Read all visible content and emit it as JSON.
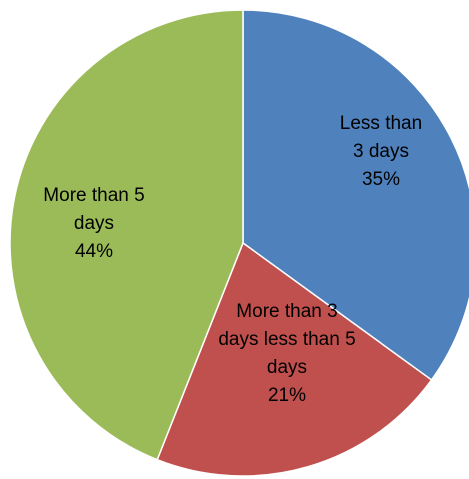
{
  "chart_data": {
    "type": "pie",
    "title": "",
    "slices": [
      {
        "label_lines": [
          "Less than",
          "3 days",
          "35%"
        ],
        "value": 35,
        "color": "#4F81BD"
      },
      {
        "label_lines": [
          "More than 3",
          "days less than 5",
          "days",
          "21%"
        ],
        "value": 21,
        "color": "#C0504D"
      },
      {
        "label_lines": [
          "More than 5",
          "days",
          "44%"
        ],
        "value": 44,
        "color": "#9BBB59"
      }
    ],
    "start_angle_deg": 0,
    "direction": "clockwise",
    "slice_border_color": "#ffffff",
    "legend": "none"
  }
}
